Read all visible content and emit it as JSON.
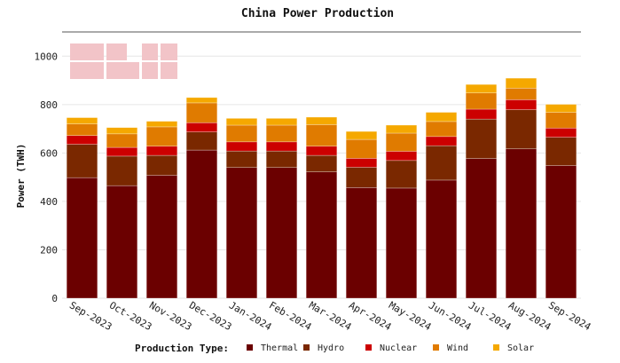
{
  "chart_data": {
    "type": "bar",
    "stacked": true,
    "title": "China Power Production",
    "ylabel": "Power (TWH)",
    "xlabel": "",
    "ylim": [
      0,
      1100
    ],
    "yticks": [
      0,
      200,
      400,
      600,
      800,
      1000
    ],
    "grid": true,
    "legend_title": "Production Type:",
    "legend_position": "bottom",
    "categories": [
      "Sep-2023",
      "Oct-2023",
      "Nov-2023",
      "Dec-2023",
      "Jan-2024",
      "Feb-2024",
      "Mar-2024",
      "Apr-2024",
      "May-2024",
      "Jun-2024",
      "Jul-2024",
      "Aug-2024",
      "Sep-2024"
    ],
    "series": [
      {
        "name": "Thermal",
        "color": "#6b0000",
        "values": [
          498,
          465,
          508,
          612,
          540,
          540,
          522,
          457,
          455,
          488,
          577,
          617,
          548
        ]
      },
      {
        "name": "Hydro",
        "color": "#7a2800",
        "values": [
          138,
          122,
          82,
          75,
          68,
          68,
          68,
          84,
          114,
          142,
          163,
          162,
          117
        ]
      },
      {
        "name": "Nuclear",
        "color": "#cc0000",
        "values": [
          36,
          36,
          38,
          38,
          38,
          38,
          38,
          37,
          38,
          38,
          41,
          41,
          38
        ]
      },
      {
        "name": "Wind",
        "color": "#e07b00",
        "values": [
          48,
          56,
          80,
          82,
          69,
          69,
          89,
          78,
          75,
          62,
          67,
          48,
          65
        ]
      },
      {
        "name": "Solar",
        "color": "#f5a800",
        "values": [
          26,
          26,
          23,
          22,
          28,
          28,
          31,
          33,
          33,
          38,
          35,
          41,
          33
        ]
      }
    ]
  }
}
